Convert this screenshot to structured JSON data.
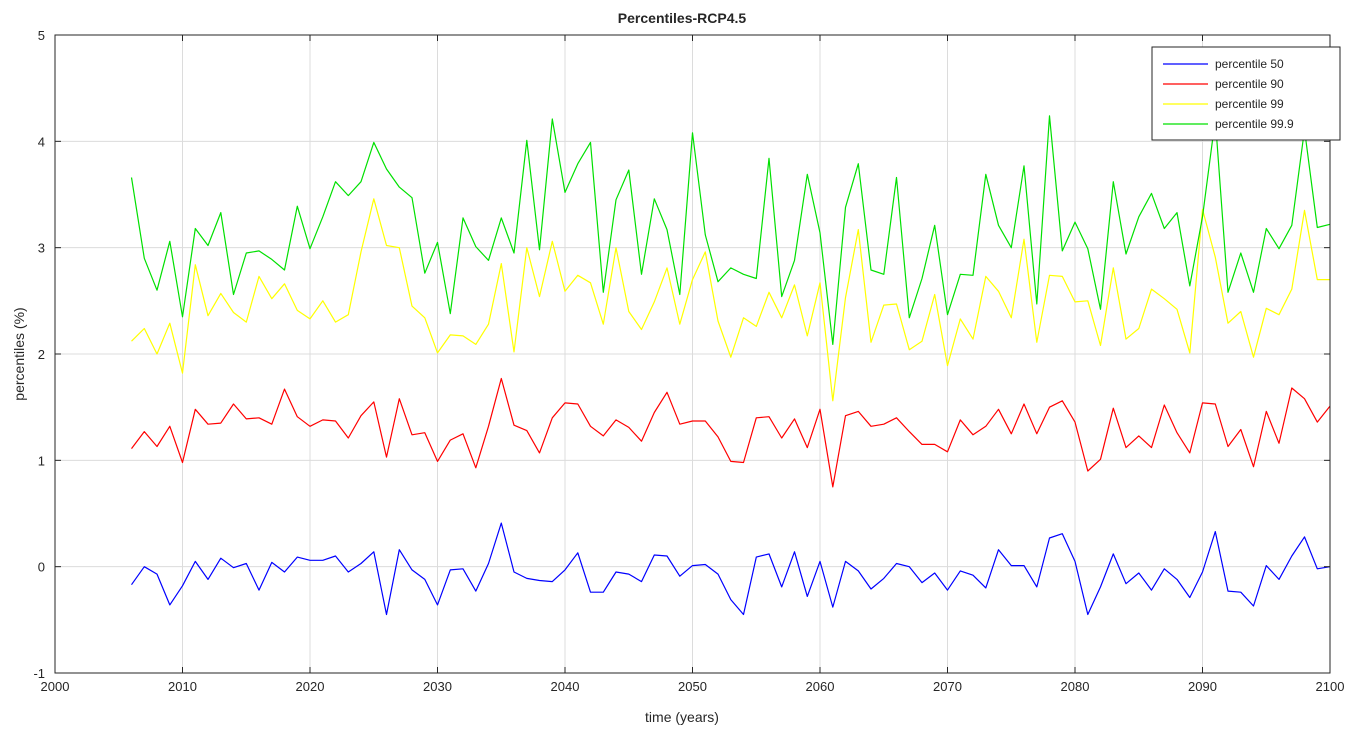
{
  "chart_data": {
    "type": "line",
    "title": "Percentiles-RCP4.5",
    "xlabel": "time (years)",
    "ylabel": "percentiles (%)",
    "xlim": [
      2000,
      2100
    ],
    "ylim": [
      -1,
      5
    ],
    "xticks": [
      2000,
      2010,
      2020,
      2030,
      2040,
      2050,
      2060,
      2070,
      2080,
      2090,
      2100
    ],
    "yticks": [
      -1,
      0,
      1,
      2,
      3,
      4,
      5
    ],
    "grid": true,
    "legend_position": "top-right",
    "x_start": 2006,
    "series": [
      {
        "name": "percentile 50",
        "color": "#0000ff",
        "values": [
          -0.17,
          0.0,
          -0.07,
          -0.36,
          -0.18,
          0.05,
          -0.12,
          0.08,
          -0.01,
          0.03,
          -0.22,
          0.04,
          -0.05,
          0.09,
          0.06,
          0.06,
          0.1,
          -0.05,
          0.03,
          0.14,
          -0.45,
          0.16,
          -0.03,
          -0.12,
          -0.36,
          -0.03,
          -0.02,
          -0.23,
          0.03,
          0.41,
          -0.05,
          -0.11,
          -0.13,
          -0.14,
          -0.03,
          0.13,
          -0.24,
          -0.24,
          -0.05,
          -0.07,
          -0.14,
          0.11,
          0.1,
          -0.09,
          0.01,
          0.02,
          -0.07,
          -0.31,
          -0.45,
          0.09,
          0.12,
          -0.19,
          0.14,
          -0.28,
          0.05,
          -0.38,
          0.05,
          -0.04,
          -0.21,
          -0.11,
          0.03,
          0.0,
          -0.15,
          -0.06,
          -0.22,
          -0.04,
          -0.08,
          -0.2,
          0.16,
          0.01,
          0.01,
          -0.19,
          0.27,
          0.31,
          0.05,
          -0.45,
          -0.19,
          0.12,
          -0.16,
          -0.06,
          -0.22,
          -0.02,
          -0.12,
          -0.29,
          -0.05,
          0.33,
          -0.23,
          -0.24,
          -0.37,
          0.01,
          -0.12,
          0.1,
          0.28,
          -0.02,
          0.0
        ]
      },
      {
        "name": "percentile 90",
        "color": "#ff0000",
        "values": [
          1.11,
          1.27,
          1.13,
          1.32,
          0.98,
          1.48,
          1.34,
          1.35,
          1.53,
          1.39,
          1.4,
          1.34,
          1.67,
          1.41,
          1.32,
          1.38,
          1.37,
          1.21,
          1.42,
          1.55,
          1.03,
          1.58,
          1.24,
          1.26,
          0.99,
          1.19,
          1.25,
          0.93,
          1.32,
          1.77,
          1.33,
          1.28,
          1.07,
          1.4,
          1.54,
          1.53,
          1.32,
          1.23,
          1.38,
          1.31,
          1.18,
          1.45,
          1.64,
          1.34,
          1.37,
          1.37,
          1.22,
          0.99,
          0.98,
          1.4,
          1.41,
          1.21,
          1.39,
          1.12,
          1.48,
          0.75,
          1.42,
          1.46,
          1.32,
          1.34,
          1.4,
          1.27,
          1.15,
          1.15,
          1.08,
          1.38,
          1.24,
          1.32,
          1.48,
          1.25,
          1.53,
          1.25,
          1.5,
          1.56,
          1.36,
          0.9,
          1.01,
          1.49,
          1.12,
          1.23,
          1.12,
          1.52,
          1.26,
          1.07,
          1.54,
          1.53,
          1.13,
          1.29,
          0.94,
          1.46,
          1.16,
          1.68,
          1.58,
          1.36,
          1.51
        ]
      },
      {
        "name": "percentile 99",
        "color": "#ffff00",
        "values": [
          2.12,
          2.24,
          2.0,
          2.29,
          1.82,
          2.84,
          2.36,
          2.57,
          2.39,
          2.3,
          2.73,
          2.52,
          2.66,
          2.41,
          2.33,
          2.5,
          2.3,
          2.37,
          2.96,
          3.46,
          3.02,
          3.0,
          2.45,
          2.34,
          2.01,
          2.18,
          2.17,
          2.09,
          2.28,
          2.85,
          2.02,
          3.0,
          2.54,
          3.06,
          2.59,
          2.74,
          2.67,
          2.28,
          3.0,
          2.4,
          2.23,
          2.49,
          2.81,
          2.28,
          2.7,
          2.96,
          2.31,
          1.97,
          2.34,
          2.26,
          2.58,
          2.34,
          2.65,
          2.17,
          2.67,
          1.56,
          2.53,
          3.17,
          2.11,
          2.46,
          2.47,
          2.04,
          2.12,
          2.56,
          1.89,
          2.33,
          2.14,
          2.73,
          2.59,
          2.34,
          3.08,
          2.11,
          2.74,
          2.73,
          2.49,
          2.5,
          2.08,
          2.81,
          2.14,
          2.24,
          2.61,
          2.52,
          2.42,
          2.01,
          3.36,
          2.91,
          2.29,
          2.4,
          1.97,
          2.43,
          2.37,
          2.61,
          3.35,
          2.7,
          2.7
        ]
      },
      {
        "name": "percentile 99.9",
        "color": "#00e000",
        "values": [
          3.66,
          2.9,
          2.6,
          3.06,
          2.35,
          3.18,
          3.02,
          3.33,
          2.56,
          2.95,
          2.97,
          2.89,
          2.79,
          3.39,
          2.99,
          3.29,
          3.62,
          3.49,
          3.62,
          3.99,
          3.74,
          3.57,
          3.47,
          2.76,
          3.05,
          2.38,
          3.28,
          3.01,
          2.88,
          3.28,
          2.95,
          4.01,
          2.98,
          4.21,
          3.52,
          3.79,
          3.99,
          2.58,
          3.45,
          3.73,
          2.75,
          3.46,
          3.17,
          2.56,
          4.08,
          3.12,
          2.68,
          2.81,
          2.75,
          2.71,
          3.84,
          2.54,
          2.88,
          3.69,
          3.14,
          2.09,
          3.38,
          3.79,
          2.79,
          2.75,
          3.66,
          2.34,
          2.71,
          3.21,
          2.37,
          2.75,
          2.74,
          3.69,
          3.21,
          3.0,
          3.77,
          2.47,
          4.24,
          2.97,
          3.24,
          2.99,
          2.42,
          3.62,
          2.94,
          3.29,
          3.51,
          3.18,
          3.33,
          2.64,
          3.29,
          4.21,
          2.58,
          2.95,
          2.58,
          3.18,
          2.99,
          3.21,
          4.11,
          3.19,
          3.22
        ]
      }
    ]
  }
}
